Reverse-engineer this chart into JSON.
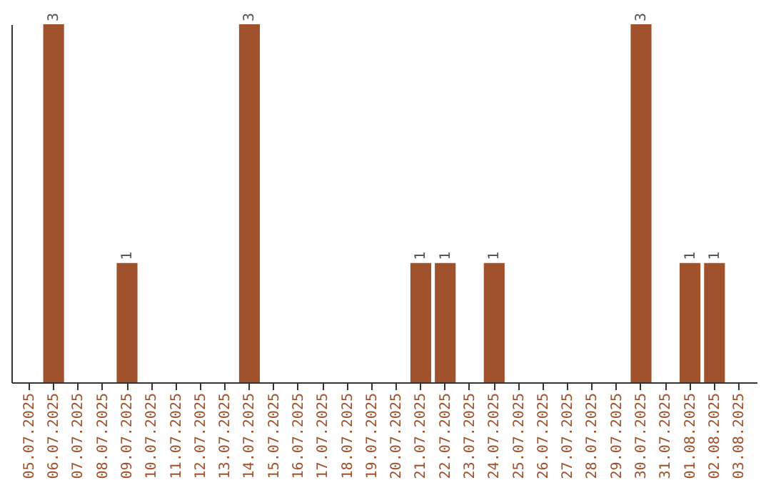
{
  "chart_data": {
    "type": "bar",
    "categories": [
      "05.07.2025",
      "06.07.2025",
      "07.07.2025",
      "08.07.2025",
      "09.07.2025",
      "10.07.2025",
      "11.07.2025",
      "12.07.2025",
      "13.07.2025",
      "14.07.2025",
      "15.07.2025",
      "16.07.2025",
      "17.07.2025",
      "18.07.2025",
      "19.07.2025",
      "20.07.2025",
      "21.07.2025",
      "22.07.2025",
      "23.07.2025",
      "24.07.2025",
      "25.07.2025",
      "26.07.2025",
      "27.07.2025",
      "28.07.2025",
      "29.07.2025",
      "30.07.2025",
      "31.07.2025",
      "01.08.2025",
      "02.08.2025",
      "03.08.2025"
    ],
    "values": [
      0,
      3,
      0,
      0,
      1,
      0,
      0,
      0,
      0,
      3,
      0,
      0,
      0,
      0,
      0,
      0,
      1,
      1,
      0,
      1,
      0,
      0,
      0,
      0,
      0,
      3,
      0,
      1,
      1,
      0
    ],
    "value_labels": [
      null,
      "3",
      null,
      null,
      "1",
      null,
      null,
      null,
      null,
      "3",
      null,
      null,
      null,
      null,
      null,
      null,
      "1",
      "1",
      null,
      "1",
      null,
      null,
      null,
      null,
      null,
      "3",
      null,
      "1",
      "1",
      null
    ],
    "color": "#a0522d",
    "grid": false,
    "tick_labels": "x"
  }
}
